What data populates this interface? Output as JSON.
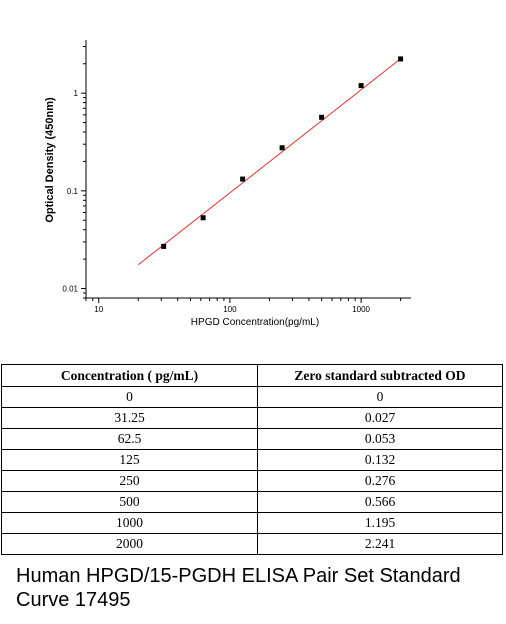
{
  "chart_data": {
    "type": "scatter",
    "xlabel": "HPGD  Concentration(pg/mL)",
    "ylabel": "Optical Density (450nm)",
    "x_scale": "log",
    "y_scale": "log",
    "xlim": [
      8,
      2400
    ],
    "ylim": [
      0.008,
      3.5
    ],
    "x_ticks": [
      10,
      100,
      1000
    ],
    "x_tick_labels": [
      "10",
      "100",
      "1000"
    ],
    "y_ticks": [
      0.01,
      0.1,
      1
    ],
    "y_tick_labels": [
      "0.01",
      "0.1",
      "1"
    ],
    "points": [
      {
        "x": 31.25,
        "y": 0.027
      },
      {
        "x": 62.5,
        "y": 0.053
      },
      {
        "x": 125,
        "y": 0.132
      },
      {
        "x": 250,
        "y": 0.276
      },
      {
        "x": 500,
        "y": 0.566
      },
      {
        "x": 1000,
        "y": 1.195
      },
      {
        "x": 2000,
        "y": 2.241
      }
    ],
    "fit_line": {
      "x": [
        20,
        2000
      ],
      "y": [
        0.0175,
        2.25
      ],
      "color": "#e03030"
    },
    "marker_color": "#000000"
  },
  "table": {
    "headers": [
      "Concentration ( pg/mL)",
      "Zero standard subtracted OD"
    ],
    "rows": [
      [
        "0",
        "0"
      ],
      [
        "31.25",
        "0.027"
      ],
      [
        "62.5",
        "0.053"
      ],
      [
        "125",
        "0.132"
      ],
      [
        "250",
        "0.276"
      ],
      [
        "500",
        "0.566"
      ],
      [
        "1000",
        "1.195"
      ],
      [
        "2000",
        "2.241"
      ]
    ]
  },
  "caption": "Human HPGD/15-PGDH ELISA Pair Set Standard Curve 17495"
}
